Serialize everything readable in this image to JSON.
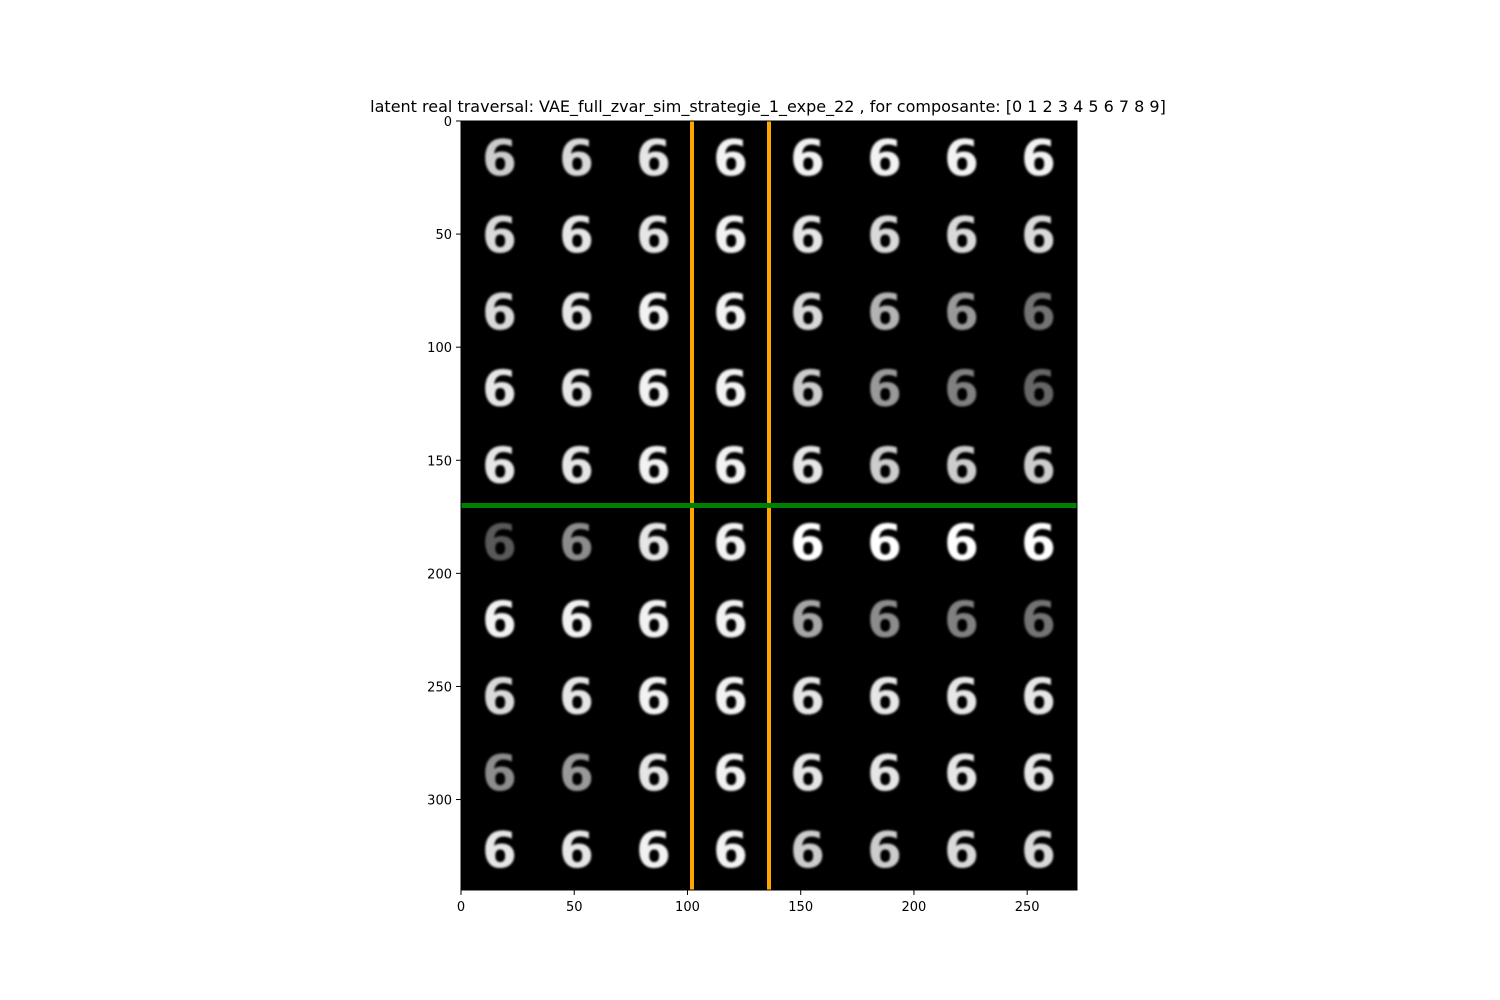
{
  "chart_data": {
    "type": "image-grid",
    "title": "latent real traversal: VAE_full_zvar_sim_strategie_1_expe_22 , for composante: [0 1 2 3 4 5 6 7 8 9]",
    "xlabel": "",
    "ylabel": "",
    "xlim": [
      0,
      272
    ],
    "ylim": [
      340,
      0
    ],
    "x_ticks": [
      0,
      50,
      100,
      150,
      200,
      250
    ],
    "y_ticks": [
      0,
      50,
      100,
      150,
      200,
      250,
      300
    ],
    "grid": false,
    "grid_rows": 10,
    "grid_cols": 8,
    "cell_size": 34,
    "background_color": "#000000",
    "digit_color": "#ffffff",
    "vertical_lines": {
      "x": [
        102,
        136
      ],
      "color": "#ffa500"
    },
    "horizontal_lines": {
      "y": [
        170
      ],
      "color": "#008000"
    },
    "cells": [
      [
        "6",
        "6",
        "6",
        "6",
        "6",
        "6",
        "6",
        "6"
      ],
      [
        "6",
        "6",
        "6",
        "6",
        "6",
        "6",
        "6",
        "6"
      ],
      [
        "6",
        "6",
        "6",
        "6",
        "6",
        "6",
        "6",
        "6"
      ],
      [
        "6",
        "6",
        "6",
        "6",
        "6",
        "6",
        "6",
        "6"
      ],
      [
        "6",
        "6",
        "6",
        "6",
        "6",
        "6",
        "6",
        "6"
      ],
      [
        "6",
        "6",
        "6",
        "6",
        "6",
        "6",
        "6",
        "6"
      ],
      [
        "6",
        "6",
        "6",
        "6",
        "6",
        "6",
        "6",
        "6"
      ],
      [
        "6",
        "6",
        "6",
        "6",
        "6",
        "6",
        "6",
        "6"
      ],
      [
        "6",
        "6",
        "6",
        "6",
        "6",
        "6",
        "6",
        "6"
      ],
      [
        "6",
        "6",
        "6",
        "6",
        "6",
        "6",
        "6",
        "6"
      ]
    ],
    "cell_intensity": [
      [
        0.8,
        0.85,
        0.9,
        0.95,
        0.95,
        0.95,
        0.95,
        0.95
      ],
      [
        0.85,
        0.9,
        0.9,
        0.95,
        0.9,
        0.85,
        0.85,
        0.85
      ],
      [
        0.85,
        0.9,
        0.95,
        0.95,
        0.85,
        0.7,
        0.6,
        0.45
      ],
      [
        0.9,
        0.9,
        0.95,
        0.95,
        0.8,
        0.6,
        0.5,
        0.4
      ],
      [
        0.9,
        0.9,
        0.95,
        0.95,
        0.9,
        0.8,
        0.8,
        0.8
      ],
      [
        0.35,
        0.55,
        0.9,
        0.95,
        1.0,
        1.0,
        1.0,
        1.0
      ],
      [
        0.95,
        0.95,
        0.95,
        0.95,
        0.65,
        0.55,
        0.5,
        0.45
      ],
      [
        0.85,
        0.9,
        0.95,
        0.95,
        0.9,
        0.9,
        0.9,
        0.9
      ],
      [
        0.55,
        0.6,
        0.9,
        0.95,
        0.9,
        0.9,
        0.9,
        0.9
      ],
      [
        0.9,
        0.9,
        0.95,
        0.95,
        0.8,
        0.8,
        0.85,
        0.85
      ]
    ]
  }
}
